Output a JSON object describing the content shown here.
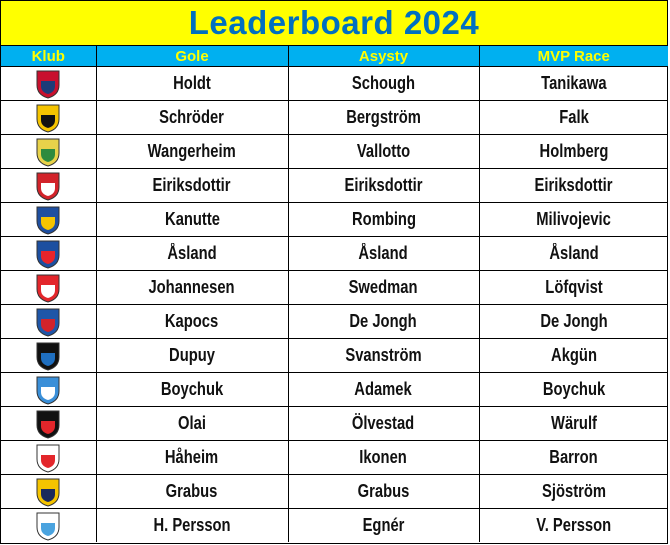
{
  "title": "Leaderboard 2024",
  "headers": [
    "Klub",
    "Gole",
    "Asysty",
    "MVP Race"
  ],
  "rows": [
    {
      "logo": "fc-rosengard-crest-icon",
      "colors": [
        "#c8102e",
        "#1d3c78"
      ],
      "gole": "Holdt",
      "asysty": "Schough",
      "mvp": "Tanikawa"
    },
    {
      "logo": "hacken-crest-icon",
      "colors": [
        "#f5c400",
        "#111111"
      ],
      "gole": "Schröder",
      "asysty": "Bergström",
      "mvp": "Falk"
    },
    {
      "logo": "hammarby-crest-icon",
      "colors": [
        "#e8d24a",
        "#2e8b3e"
      ],
      "gole": "Wangerheim",
      "asysty": "Vallotto",
      "mvp": "Holmberg"
    },
    {
      "logo": "kristianstad-crest-icon",
      "colors": [
        "#d2232a",
        "#ffffff"
      ],
      "gole": "Eiriksdottir",
      "asysty": "Eiriksdottir",
      "mvp": "Eiriksdottir"
    },
    {
      "logo": "norrkoping-crest-icon",
      "colors": [
        "#1f4fa0",
        "#f5c400"
      ],
      "gole": "Kanutte",
      "asysty": "Rombing",
      "mvp": "Milivojevic"
    },
    {
      "logo": "djurgarden-crest-icon",
      "colors": [
        "#1c4fa0",
        "#e8242b"
      ],
      "gole": "Åsland",
      "asysty": "Åsland",
      "mvp": "Åsland"
    },
    {
      "logo": "pitea-crest-icon",
      "colors": [
        "#e3262b",
        "#ffffff"
      ],
      "gole": "Johannesen",
      "asysty": "Swedman",
      "mvp": "Löfqvist"
    },
    {
      "logo": "linkoping-crest-icon",
      "colors": [
        "#1f56a8",
        "#d2232a"
      ],
      "gole": "Kapocs",
      "asysty": "De Jongh",
      "mvp": "De Jongh"
    },
    {
      "logo": "vittsjo-crest-icon",
      "colors": [
        "#111111",
        "#1f6fc0"
      ],
      "gole": "Dupuy",
      "asysty": "Svanström",
      "mvp": "Akgün"
    },
    {
      "logo": "vaxjo-crest-icon",
      "colors": [
        "#3a8fd8",
        "#ffffff"
      ],
      "gole": "Boychuk",
      "asysty": "Adamek",
      "mvp": "Boychuk"
    },
    {
      "logo": "brommapojkarna-crest-icon",
      "colors": [
        "#111111",
        "#e3262b"
      ],
      "gole": "Olai",
      "asysty": "Ölvestad",
      "mvp": "Wärulf"
    },
    {
      "logo": "orebro-crest-icon",
      "colors": [
        "#ffffff",
        "#e3262b"
      ],
      "gole": "Håheim",
      "asysty": "Ikonen",
      "mvp": "Barron"
    },
    {
      "logo": "aik-crest-icon",
      "colors": [
        "#f5c400",
        "#1a2a5c"
      ],
      "gole": "Grabus",
      "asysty": "Grabus",
      "mvp": "Sjöström"
    },
    {
      "logo": "trelleborg-crest-icon",
      "colors": [
        "#ffffff",
        "#4aa3df"
      ],
      "gole": "H. Persson",
      "asysty": "Egnér",
      "mvp": "V. Persson"
    }
  ]
}
